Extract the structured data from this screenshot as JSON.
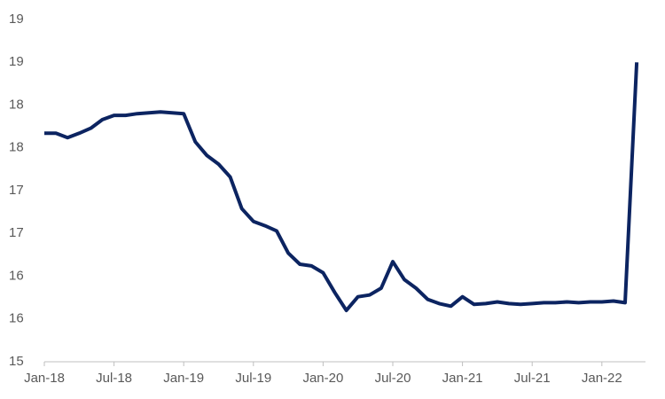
{
  "chart_data": {
    "type": "line",
    "categories": [
      "Jan-18",
      null,
      null,
      null,
      null,
      null,
      "Jul-18",
      null,
      null,
      null,
      null,
      null,
      "Jan-19",
      null,
      null,
      null,
      null,
      null,
      "Jul-19",
      null,
      null,
      null,
      null,
      null,
      "Jan-20",
      null,
      null,
      null,
      null,
      null,
      "Jul-20",
      null,
      null,
      null,
      null,
      null,
      "Jan-21",
      null,
      null,
      null,
      null,
      null,
      "Jul-21",
      null,
      null,
      null,
      null,
      null,
      "Jan-22",
      null,
      null,
      null
    ],
    "values": [
      17.67,
      17.67,
      17.62,
      17.67,
      17.73,
      17.83,
      17.88,
      17.88,
      17.9,
      17.91,
      17.92,
      17.91,
      17.9,
      17.57,
      17.41,
      17.31,
      17.16,
      16.79,
      16.64,
      16.59,
      16.53,
      16.27,
      16.14,
      16.12,
      16.04,
      15.81,
      15.6,
      15.76,
      15.78,
      15.86,
      16.17,
      15.96,
      15.86,
      15.73,
      15.68,
      15.65,
      15.76,
      15.67,
      15.68,
      15.7,
      15.68,
      15.67,
      15.68,
      15.69,
      15.69,
      15.7,
      15.69,
      15.7,
      15.7,
      15.71,
      15.69,
      18.5
    ],
    "color": "#0c2461",
    "ylim": [
      15,
      19
    ],
    "yticks": [
      15,
      {
        "value": 15.5,
        "label": "16"
      },
      16,
      {
        "value": 16.5,
        "label": "17"
      },
      17,
      {
        "value": 17.5,
        "label": "18"
      },
      18,
      {
        "value": 18.5,
        "label": "19"
      },
      19
    ],
    "grid": false
  }
}
